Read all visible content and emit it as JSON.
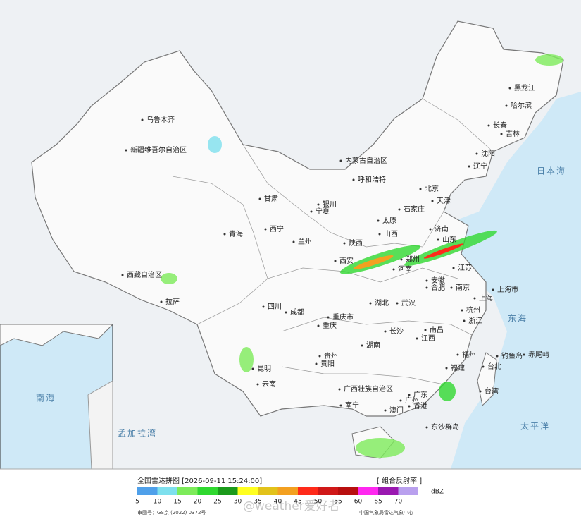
{
  "map": {
    "places": [
      "乌鲁木齐",
      "新疆维吾尔自治区",
      "西藏自治区",
      "拉萨",
      "青海",
      "西宁",
      "甘肃",
      "兰州",
      "宁夏",
      "银川",
      "内蒙古自治区",
      "呼和浩特",
      "北京",
      "天津",
      "石家庄",
      "太原",
      "山西",
      "陕西",
      "西安",
      "郑州",
      "河南",
      "济南",
      "山东",
      "江苏",
      "安徽",
      "合肥",
      "南京",
      "上海市",
      "上海",
      "杭州",
      "浙江",
      "武汉",
      "湖北",
      "四川",
      "成都",
      "重庆市",
      "重庆",
      "贵州",
      "贵阳",
      "湖南",
      "长沙",
      "江西",
      "南昌",
      "福建",
      "福州",
      "云南",
      "昆明",
      "广西壮族自治区",
      "南宁",
      "广东",
      "广州",
      "澳门",
      "香港",
      "台湾",
      "台北",
      "黑龙江",
      "哈尔滨",
      "吉林",
      "长春",
      "辽宁",
      "沈阳",
      "钓鱼岛",
      "赤尾屿",
      "东沙群岛"
    ],
    "seas": [
      "日本海",
      "东海",
      "太平洋",
      "孟加拉湾",
      "南海"
    ]
  },
  "legend": {
    "title": "全国雷达拼图 [2026-09-11 15:24:00]",
    "product": "[ 组合反射率 ]",
    "unit": "dBZ",
    "levels": [
      {
        "value": 5,
        "color": "#4fa0ea"
      },
      {
        "value": 10,
        "color": "#7ee0ee"
      },
      {
        "value": 15,
        "color": "#7deb5a"
      },
      {
        "value": 20,
        "color": "#2fd82f"
      },
      {
        "value": 25,
        "color": "#1b9a1b"
      },
      {
        "value": 30,
        "color": "#ffff20"
      },
      {
        "value": 35,
        "color": "#e2c21a"
      },
      {
        "value": 40,
        "color": "#f3a020"
      },
      {
        "value": 45,
        "color": "#ff2a1a"
      },
      {
        "value": 50,
        "color": "#d01818"
      },
      {
        "value": 55,
        "color": "#b80f0f"
      },
      {
        "value": 60,
        "color": "#ff28f0"
      },
      {
        "value": 65,
        "color": "#9a18b0"
      },
      {
        "value": 70,
        "color": "#b9a0ee"
      }
    ],
    "approval": "审图号：GS京 (2022) 0372号",
    "source": "中国气象局雷达气象中心",
    "watermark": "@weather爱好者"
  }
}
